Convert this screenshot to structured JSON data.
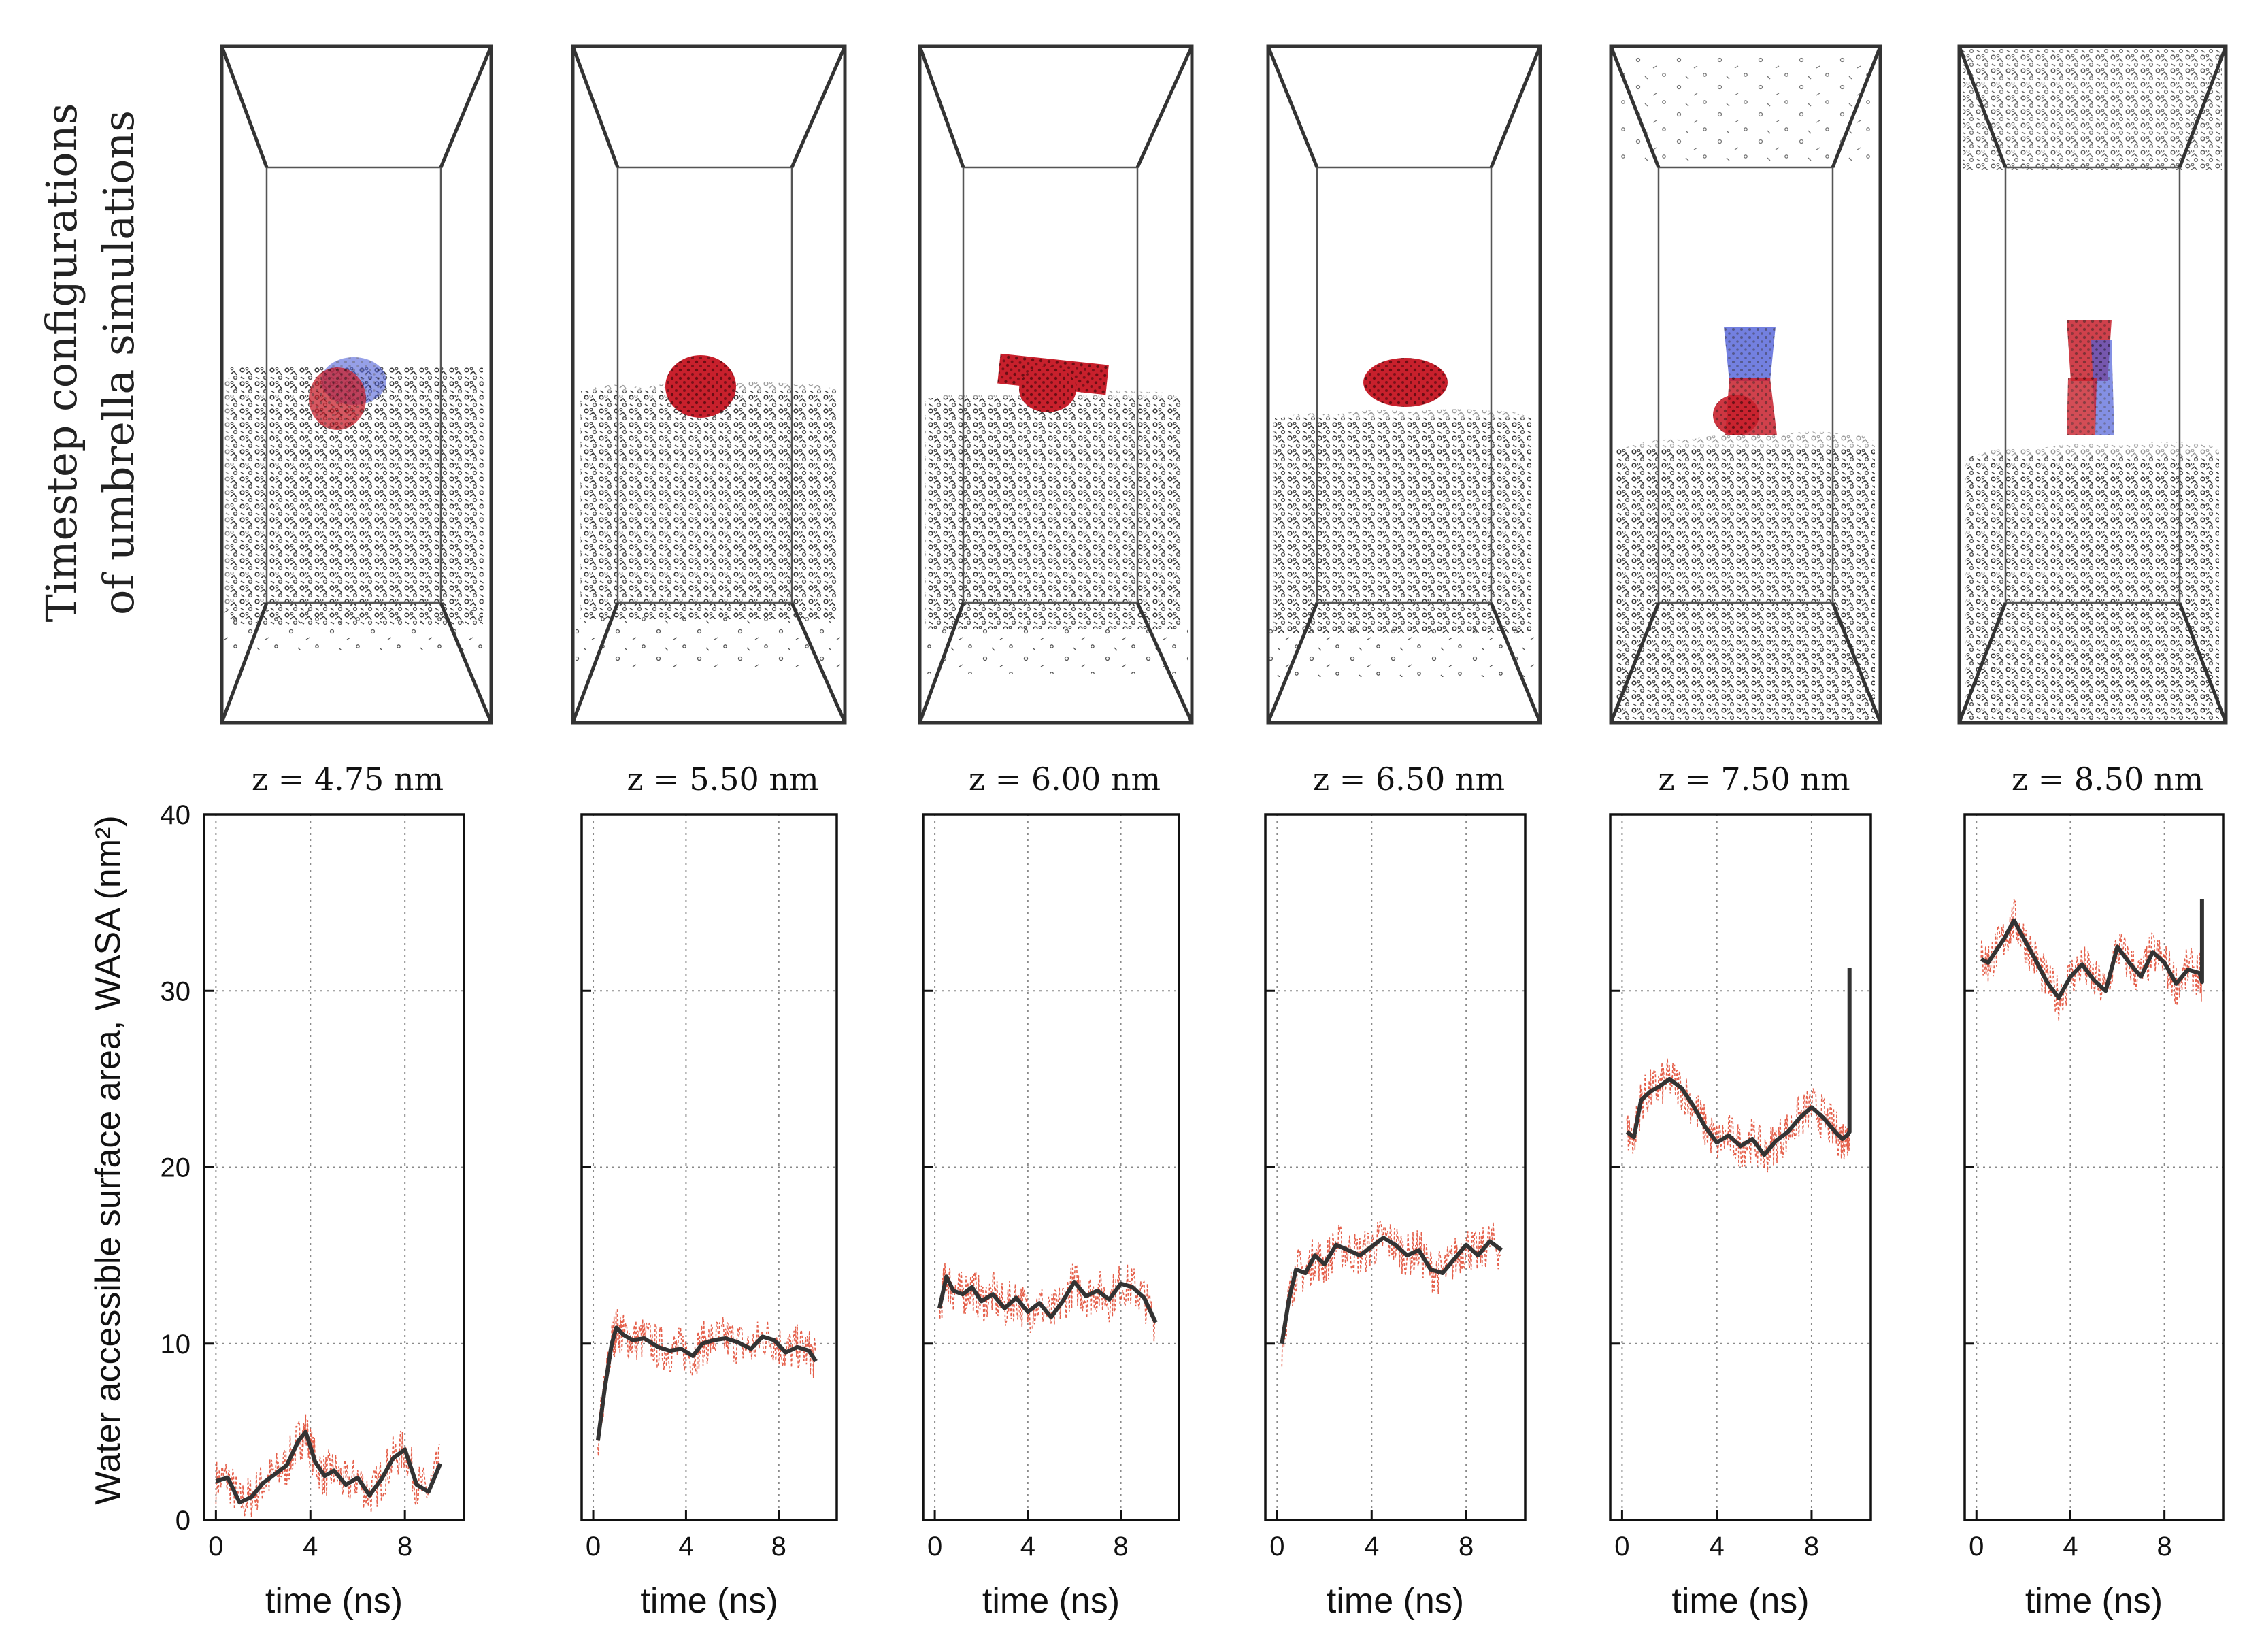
{
  "snapshot_label": "Timestep configurations of umbrella simulations",
  "snapshot_label_lines": [
    "Timestep configurations",
    "of umbrella simulations"
  ],
  "colors": {
    "raw": "#e0442c",
    "smooth": "#333333",
    "grid": "#8a8a8a",
    "water": "#3c3c3c",
    "molecule_red": "#c8202c",
    "molecule_blue": "#4a5ad8"
  },
  "chart_data": [
    {
      "type": "line",
      "title": "z = 4.75 nm",
      "xlabel": "time (ns)",
      "ylabel": "Water accessible surface area, WASA (nm²)",
      "xticks": [
        0,
        4,
        8
      ],
      "yticks": [
        0,
        10,
        20,
        30,
        40
      ],
      "xlim": [
        -0.5,
        10.5
      ],
      "ylim": [
        0,
        40
      ],
      "grid": true,
      "series": [
        {
          "name": "smoothed",
          "x": [
            0,
            0.5,
            1,
            1.5,
            2,
            2.5,
            3,
            3.5,
            3.8,
            4.2,
            4.6,
            5,
            5.5,
            6,
            6.5,
            7,
            7.5,
            8,
            8.5,
            9,
            9.5
          ],
          "y": [
            2.2,
            2.4,
            1.0,
            1.3,
            2.1,
            2.6,
            3.1,
            4.5,
            5.0,
            3.3,
            2.5,
            2.8,
            2.0,
            2.4,
            1.4,
            2.3,
            3.5,
            4.0,
            2.0,
            1.6,
            3.2
          ]
        }
      ]
    },
    {
      "type": "line",
      "title": "z = 5.50 nm",
      "xlabel": "time (ns)",
      "xticks": [
        0,
        4,
        8
      ],
      "yticks": [
        0,
        10,
        20,
        30,
        40
      ],
      "xlim": [
        -0.5,
        10.5
      ],
      "ylim": [
        0,
        40
      ],
      "grid": true,
      "series": [
        {
          "name": "smoothed",
          "x": [
            0.2,
            0.5,
            0.8,
            1.0,
            1.3,
            1.7,
            2.2,
            2.8,
            3.3,
            3.8,
            4.3,
            4.7,
            5.2,
            5.7,
            6.2,
            6.8,
            7.3,
            7.8,
            8.3,
            8.8,
            9.3,
            9.6
          ],
          "y": [
            4.5,
            7.5,
            10.0,
            10.9,
            10.5,
            10.2,
            10.3,
            9.8,
            9.6,
            9.7,
            9.3,
            10.0,
            10.2,
            10.3,
            10.1,
            9.7,
            10.4,
            10.2,
            9.5,
            9.8,
            9.6,
            9.0
          ]
        }
      ]
    },
    {
      "type": "line",
      "title": "z = 6.00 nm",
      "xlabel": "time (ns)",
      "xticks": [
        0,
        4,
        8
      ],
      "yticks": [
        0,
        10,
        20,
        30,
        40
      ],
      "xlim": [
        -0.5,
        10.5
      ],
      "ylim": [
        0,
        40
      ],
      "grid": true,
      "series": [
        {
          "name": "smoothed",
          "x": [
            0.2,
            0.5,
            0.8,
            1.2,
            1.6,
            2.0,
            2.5,
            3.0,
            3.5,
            4.0,
            4.5,
            5.0,
            5.5,
            6.0,
            6.5,
            7.0,
            7.5,
            8.0,
            8.5,
            9.0,
            9.5
          ],
          "y": [
            12.0,
            13.8,
            13.0,
            12.8,
            13.2,
            12.4,
            12.8,
            12.0,
            12.6,
            11.8,
            12.3,
            11.5,
            12.4,
            13.5,
            12.7,
            13.0,
            12.5,
            13.4,
            13.2,
            12.6,
            11.2
          ]
        }
      ]
    },
    {
      "type": "line",
      "title": "z = 6.50 nm",
      "xlabel": "time (ns)",
      "xticks": [
        0,
        4,
        8
      ],
      "yticks": [
        0,
        10,
        20,
        30,
        40
      ],
      "xlim": [
        -0.5,
        10.5
      ],
      "ylim": [
        0,
        40
      ],
      "grid": true,
      "series": [
        {
          "name": "smoothed",
          "x": [
            0.2,
            0.5,
            0.8,
            1.2,
            1.6,
            2.0,
            2.5,
            3.0,
            3.5,
            4.0,
            4.5,
            5.0,
            5.5,
            6.0,
            6.5,
            7.0,
            7.5,
            8.0,
            8.5,
            9.0,
            9.5
          ],
          "y": [
            10.0,
            12.5,
            14.2,
            14.0,
            15.0,
            14.5,
            15.6,
            15.3,
            15.0,
            15.5,
            16.0,
            15.6,
            15.0,
            15.3,
            14.2,
            14.0,
            14.8,
            15.6,
            15.0,
            15.8,
            15.3
          ]
        }
      ]
    },
    {
      "type": "line",
      "title": "z = 7.50 nm",
      "xlabel": "time (ns)",
      "xticks": [
        0,
        4,
        8
      ],
      "yticks": [
        0,
        10,
        20,
        30,
        40
      ],
      "xlim": [
        -0.5,
        10.5
      ],
      "ylim": [
        0,
        40
      ],
      "grid": true,
      "series": [
        {
          "name": "smoothed",
          "x": [
            0.2,
            0.5,
            0.8,
            1.2,
            1.6,
            2.0,
            2.5,
            3.0,
            3.5,
            4.0,
            4.5,
            5.0,
            5.5,
            6.0,
            6.5,
            7.0,
            7.5,
            8.0,
            8.5,
            9.0,
            9.3,
            9.5,
            9.6,
            9.6
          ],
          "y": [
            22.0,
            21.7,
            23.8,
            24.3,
            24.6,
            25.0,
            24.5,
            23.5,
            22.3,
            21.4,
            21.8,
            21.2,
            21.6,
            20.7,
            21.5,
            22.0,
            22.8,
            23.4,
            22.8,
            22.0,
            21.6,
            21.8,
            22.0,
            31.3
          ]
        }
      ]
    },
    {
      "type": "line",
      "title": "z = 8.50 nm",
      "xlabel": "time (ns)",
      "xticks": [
        0,
        4,
        8
      ],
      "yticks": [
        0,
        10,
        20,
        30,
        40
      ],
      "xlim": [
        -0.5,
        10.5
      ],
      "ylim": [
        0,
        40
      ],
      "grid": true,
      "series": [
        {
          "name": "smoothed",
          "x": [
            0.2,
            0.5,
            0.8,
            1.2,
            1.6,
            2.0,
            2.5,
            3.0,
            3.5,
            4.0,
            4.5,
            5.0,
            5.5,
            6.0,
            6.5,
            7.0,
            7.5,
            8.0,
            8.5,
            9.0,
            9.5,
            9.6,
            9.6
          ],
          "y": [
            31.8,
            31.6,
            32.2,
            33.0,
            34.0,
            33.0,
            31.8,
            30.5,
            29.6,
            30.8,
            31.5,
            30.6,
            30.0,
            32.5,
            31.6,
            30.8,
            32.2,
            31.6,
            30.4,
            31.2,
            31.0,
            30.5,
            35.2
          ]
        }
      ]
    }
  ]
}
